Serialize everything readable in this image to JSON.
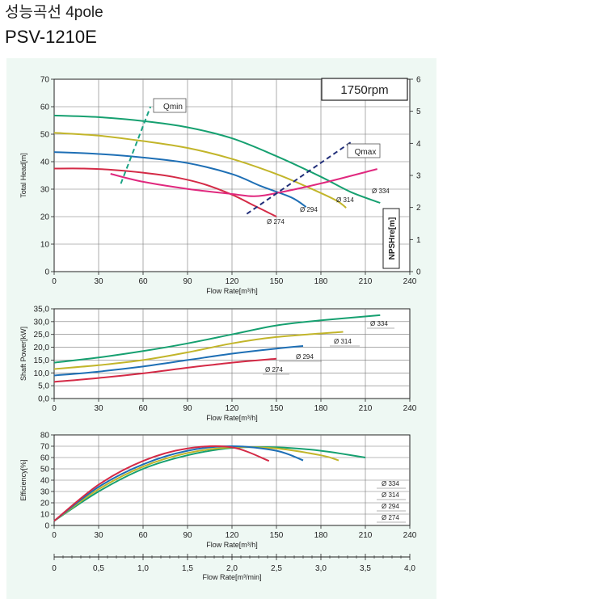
{
  "heading": "성능곡선 4pole",
  "model": "PSV-1210E",
  "colors": {
    "d334": "#16a070",
    "d314": "#c2b52a",
    "d294": "#1e6fb5",
    "d274": "#d42a46",
    "npsh": "#e0287e",
    "qmin": "#1aa384",
    "qmax": "#23307a",
    "panel": "#eef8f3"
  },
  "chart_data": [
    {
      "type": "line",
      "id": "head",
      "speed_label": "1750rpm",
      "xlabel": "Flow Rate[m³/h]",
      "ylabel": "Total Head[m]",
      "y2label": "NPSHre[m]",
      "xlim": [
        0,
        240
      ],
      "ylim": [
        0,
        70
      ],
      "y2lim": [
        0,
        6
      ],
      "xticks": [
        "0",
        "30",
        "60",
        "90",
        "120",
        "150",
        "180",
        "210",
        "240"
      ],
      "yticks": [
        "0",
        "10",
        "20",
        "30",
        "40",
        "50",
        "60",
        "70"
      ],
      "y2ticks": [
        "0",
        "1",
        "2",
        "3",
        "4",
        "5",
        "6"
      ],
      "grid": true,
      "series": [
        {
          "name": "Ø 334",
          "key": "d334",
          "x": [
            0,
            30,
            60,
            90,
            120,
            150,
            180,
            200,
            220
          ],
          "y": [
            56.8,
            56.2,
            54.8,
            52.5,
            48.5,
            42,
            34.5,
            29,
            25
          ]
        },
        {
          "name": "Ø 314",
          "key": "d314",
          "x": [
            0,
            30,
            60,
            90,
            120,
            150,
            170,
            190,
            197
          ],
          "y": [
            50.5,
            49.5,
            47.5,
            45,
            41,
            35.5,
            31,
            26,
            23.2
          ]
        },
        {
          "name": "Ø 294",
          "key": "d294",
          "x": [
            0,
            30,
            60,
            90,
            120,
            140,
            160,
            170
          ],
          "y": [
            43.5,
            42.8,
            41.5,
            39.5,
            35.5,
            31,
            27,
            23.5
          ]
        },
        {
          "name": "Ø 274",
          "key": "d274",
          "x": [
            0,
            20,
            40,
            60,
            80,
            100,
            120,
            135,
            150
          ],
          "y": [
            37.5,
            37.5,
            37,
            36,
            34.5,
            32,
            28,
            24,
            20
          ]
        }
      ],
      "npsh": {
        "key": "npsh",
        "x": [
          38,
          60,
          90,
          120,
          135,
          150,
          180,
          218
        ],
        "y": [
          3.05,
          2.8,
          2.58,
          2.42,
          2.35,
          2.45,
          2.75,
          3.2
        ]
      },
      "markers": [
        {
          "label": "Qmin",
          "key": "qmin",
          "x": [
            45,
            65
          ],
          "y": [
            32,
            60
          ]
        },
        {
          "label": "Qmax",
          "key": "qmax",
          "x": [
            130,
            200
          ],
          "y": [
            21,
            47
          ]
        }
      ]
    },
    {
      "type": "line",
      "id": "power",
      "xlabel": "Flow Rate[m³/h]",
      "ylabel": "Shaft Power[kW]",
      "xlim": [
        0,
        240
      ],
      "ylim": [
        0,
        35
      ],
      "xticks": [
        "0",
        "30",
        "60",
        "90",
        "120",
        "150",
        "180",
        "210",
        "240"
      ],
      "yticks": [
        "0,0",
        "5,0",
        "10,0",
        "15,0",
        "20,0",
        "25,0",
        "30,0",
        "35,0"
      ],
      "grid": true,
      "series": [
        {
          "name": "Ø 334",
          "key": "d334",
          "x": [
            0,
            30,
            60,
            90,
            120,
            150,
            180,
            220
          ],
          "y": [
            14,
            16,
            18.5,
            21.5,
            25,
            28.5,
            30.5,
            32.5
          ]
        },
        {
          "name": "Ø 314",
          "key": "d314",
          "x": [
            0,
            30,
            60,
            90,
            120,
            150,
            195
          ],
          "y": [
            11.5,
            13,
            15,
            18,
            21.5,
            24,
            26
          ]
        },
        {
          "name": "Ø 294",
          "key": "d294",
          "x": [
            0,
            30,
            60,
            90,
            120,
            150,
            168
          ],
          "y": [
            9,
            10.5,
            12.5,
            15,
            17.5,
            19.5,
            20.5
          ]
        },
        {
          "name": "Ø 274",
          "key": "d274",
          "x": [
            0,
            30,
            60,
            90,
            120,
            150
          ],
          "y": [
            6.5,
            8,
            9.8,
            12,
            14,
            15.5
          ]
        }
      ]
    },
    {
      "type": "line",
      "id": "efficiency",
      "xlabel": "Flow Rate[m³/h]",
      "ylabel": "Efficiency[%]",
      "xlim": [
        0,
        240
      ],
      "ylim": [
        0,
        80
      ],
      "xticks": [
        "0",
        "30",
        "60",
        "90",
        "120",
        "150",
        "180",
        "210",
        "240"
      ],
      "yticks": [
        "0",
        "10",
        "20",
        "30",
        "40",
        "50",
        "60",
        "70",
        "80"
      ],
      "grid": true,
      "series": [
        {
          "name": "Ø 334",
          "key": "d334",
          "x": [
            0,
            30,
            60,
            90,
            120,
            150,
            180,
            210
          ],
          "y": [
            4,
            30,
            50,
            62,
            68.5,
            69,
            66,
            60
          ]
        },
        {
          "name": "Ø 314",
          "key": "d314",
          "x": [
            0,
            30,
            60,
            90,
            120,
            150,
            180,
            192
          ],
          "y": [
            4,
            32,
            52,
            64,
            69,
            68,
            62,
            57.5
          ]
        },
        {
          "name": "Ø 294",
          "key": "d294",
          "x": [
            0,
            30,
            60,
            90,
            120,
            150,
            168
          ],
          "y": [
            4,
            34,
            54,
            66,
            70,
            66,
            57.5
          ]
        },
        {
          "name": "Ø 274",
          "key": "d274",
          "x": [
            0,
            30,
            60,
            90,
            120,
            145
          ],
          "y": [
            4,
            36,
            57,
            68,
            69,
            57
          ]
        }
      ],
      "legend_order": [
        "Ø 334",
        "Ø 314",
        "Ø 294",
        "Ø 274"
      ]
    },
    {
      "type": "axis",
      "id": "flow-min",
      "xlabel": "Flow Rate[m³/min]",
      "xlim": [
        0,
        4
      ],
      "xticks": [
        "0",
        "0,5",
        "1,0",
        "1,5",
        "2,0",
        "2,5",
        "3,0",
        "3,5",
        "4,0"
      ]
    }
  ]
}
